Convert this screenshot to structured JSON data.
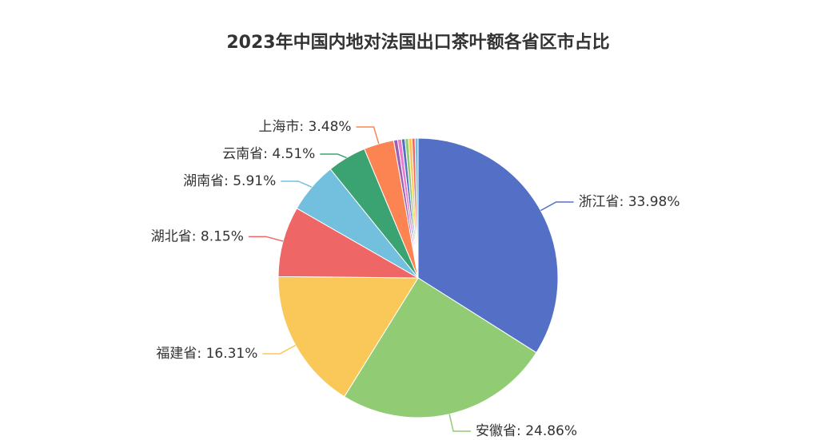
{
  "chart_data": {
    "type": "pie",
    "title": "2023年中国内地对法国出口茶叶额各省区市占比",
    "categories": [
      "浙江省",
      "安徽省",
      "福建省",
      "湖北省",
      "湖南省",
      "云南省",
      "上海市",
      null,
      null,
      null,
      null,
      null,
      null,
      null
    ],
    "values": [
      33.98,
      24.86,
      16.31,
      8.15,
      5.91,
      4.51,
      3.48,
      0.45,
      0.45,
      0.4,
      0.4,
      0.4,
      0.35,
      0.35
    ],
    "value_labels": [
      "33.98%",
      "24.86%",
      "16.31%",
      "8.15%",
      "5.91%",
      "4.51%",
      "3.48%",
      null,
      null,
      null,
      null,
      null,
      null,
      null
    ],
    "label_separator": ": ",
    "colors": [
      "#5470c6",
      "#91cc75",
      "#fac858",
      "#ee6666",
      "#73c0de",
      "#3ba272",
      "#fc8452",
      "#9a60b4",
      "#ea7ccc",
      "#5470c6",
      "#91cc75",
      "#fac858",
      "#ee6666",
      "#73c0de"
    ]
  }
}
